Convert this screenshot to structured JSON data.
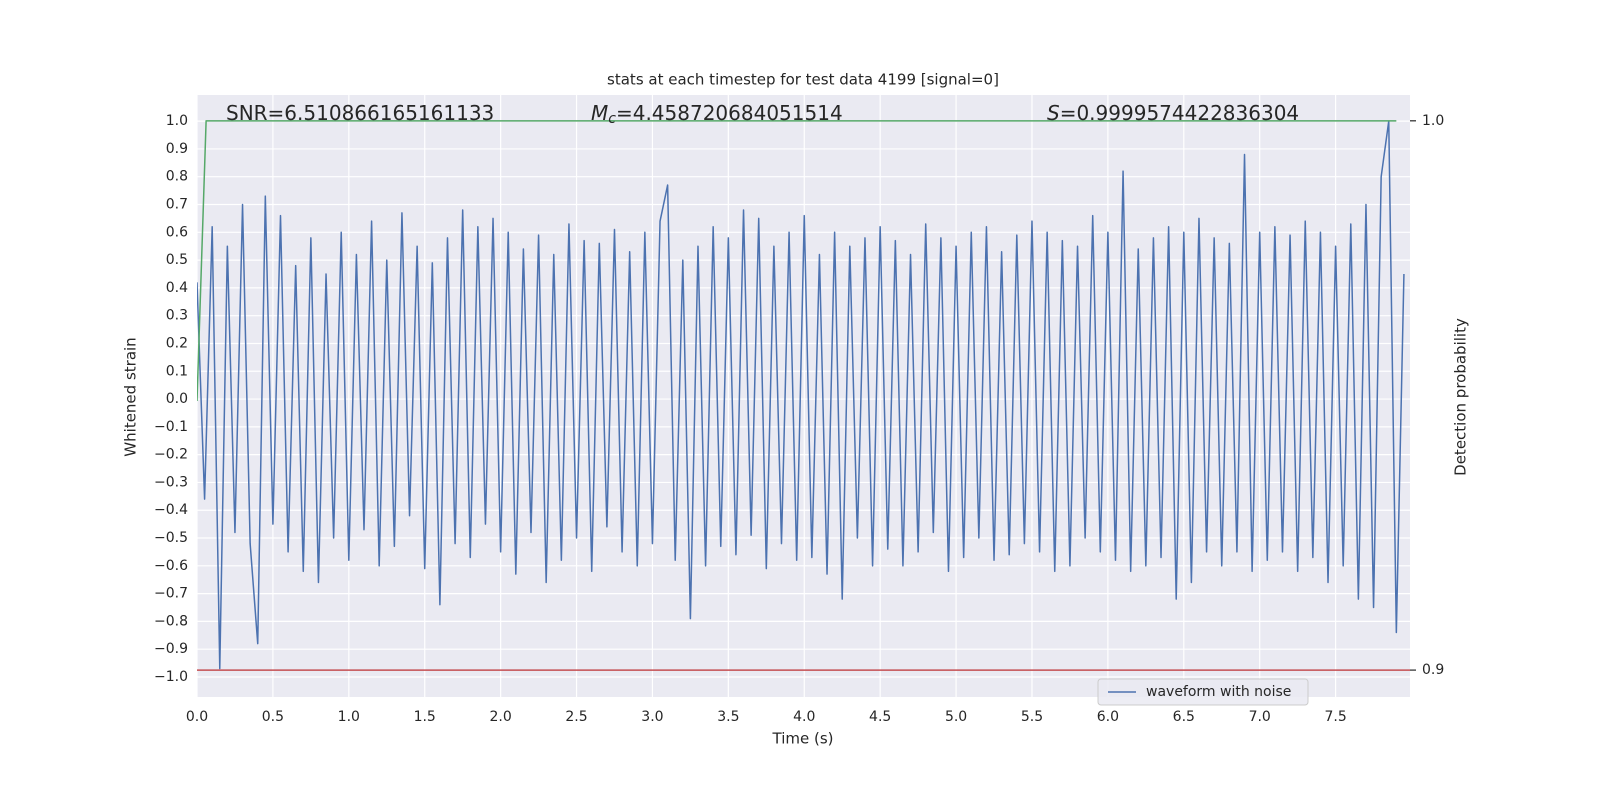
{
  "chart_data": {
    "type": "line",
    "title": "stats at each timestep for test data 4199 [signal=0]",
    "xlabel": "Time (s)",
    "ylabel": "Whitened strain",
    "y2label": "Detection probability",
    "annotations": [
      {
        "text": "SNR=6.510866165161133"
      },
      {
        "symbol": "M",
        "subscript": "c",
        "text": "=4.458720684051514"
      },
      {
        "symbol": "S",
        "text": "=0.9999574422836304"
      }
    ],
    "xlim": [
      0,
      7.99
    ],
    "ylim": [
      -1.072,
      1.094
    ],
    "y2lim": [
      0.8951,
      1.0047
    ],
    "xticks": [
      {
        "value": 0,
        "label": "0.0"
      },
      0.5,
      {
        "value": 1,
        "label": "1.0"
      },
      1.5,
      {
        "value": 2,
        "label": "2.0"
      },
      2.5,
      {
        "value": 3,
        "label": "3.0"
      },
      3.5,
      {
        "value": 4,
        "label": "4.0"
      },
      4.5,
      {
        "value": 5,
        "label": "5.0"
      },
      5.5,
      {
        "value": 6,
        "label": "6.0"
      },
      6.5,
      {
        "value": 7,
        "label": "7.0"
      },
      7.5
    ],
    "yticks": [
      {
        "value": -1,
        "label": "−1.0"
      },
      {
        "value": -0.9,
        "label": "−0.9"
      },
      {
        "value": -0.8,
        "label": "−0.8"
      },
      {
        "value": -0.7,
        "label": "−0.7"
      },
      {
        "value": -0.6,
        "label": "−0.6"
      },
      {
        "value": -0.5,
        "label": "−0.5"
      },
      {
        "value": -0.4,
        "label": "−0.4"
      },
      {
        "value": -0.3,
        "label": "−0.3"
      },
      {
        "value": -0.2,
        "label": "−0.2"
      },
      {
        "value": -0.1,
        "label": "−0.1"
      },
      {
        "value": 0,
        "label": "0.0"
      },
      0.1,
      0.2,
      0.3,
      0.4,
      0.5,
      0.6,
      0.7,
      0.8,
      0.9,
      {
        "value": 1,
        "label": "1.0"
      }
    ],
    "y2ticks": [
      0.9,
      {
        "value": 1,
        "label": "1.0"
      }
    ],
    "grid": true,
    "legend": "lower right",
    "series": [
      {
        "name": "waveform with noise",
        "color": "#4c72b0",
        "x": [
          0,
          0.05,
          0.1,
          0.15,
          0.2,
          0.25,
          0.3,
          0.35,
          0.4,
          0.45,
          0.5,
          0.55,
          0.6,
          0.65,
          0.7,
          0.75,
          0.8,
          0.85,
          0.9,
          0.95,
          1,
          1.05,
          1.1,
          1.15,
          1.2,
          1.25,
          1.3,
          1.35,
          1.4,
          1.45,
          1.5,
          1.55,
          1.6,
          1.65,
          1.7,
          1.75,
          1.8,
          1.85,
          1.9,
          1.95,
          2,
          2.05,
          2.1,
          2.15,
          2.2,
          2.25,
          2.3,
          2.35,
          2.4,
          2.45,
          2.5,
          2.55,
          2.6,
          2.65,
          2.7,
          2.75,
          2.8,
          2.85,
          2.9,
          2.95,
          3,
          3.05,
          3.1,
          3.15,
          3.2,
          3.25,
          3.3,
          3.35,
          3.4,
          3.45,
          3.5,
          3.55,
          3.6,
          3.65,
          3.7,
          3.75,
          3.8,
          3.85,
          3.9,
          3.95,
          4,
          4.05,
          4.1,
          4.15,
          4.2,
          4.25,
          4.3,
          4.35,
          4.4,
          4.45,
          4.5,
          4.55,
          4.6,
          4.65,
          4.7,
          4.75,
          4.8,
          4.85,
          4.9,
          4.95,
          5,
          5.05,
          5.1,
          5.15,
          5.2,
          5.25,
          5.3,
          5.35,
          5.4,
          5.45,
          5.5,
          5.55,
          5.6,
          5.65,
          5.7,
          5.75,
          5.8,
          5.85,
          5.9,
          5.95,
          6,
          6.05,
          6.1,
          6.15,
          6.2,
          6.25,
          6.3,
          6.35,
          6.4,
          6.45,
          6.5,
          6.55,
          6.6,
          6.65,
          6.7,
          6.75,
          6.8,
          6.85,
          6.9,
          6.95,
          7,
          7.05,
          7.1,
          7.15,
          7.2,
          7.25,
          7.3,
          7.35,
          7.4,
          7.45,
          7.5,
          7.55,
          7.6,
          7.65,
          7.7,
          7.75,
          7.8,
          7.85,
          7.9,
          7.95
        ],
        "values": [
          0.42,
          -0.36,
          0.62,
          -0.97,
          0.55,
          -0.48,
          0.7,
          -0.52,
          -0.88,
          0.73,
          -0.45,
          0.66,
          -0.55,
          0.48,
          -0.62,
          0.58,
          -0.66,
          0.45,
          -0.5,
          0.6,
          -0.58,
          0.52,
          -0.47,
          0.64,
          -0.6,
          0.5,
          -0.53,
          0.67,
          -0.42,
          0.55,
          -0.61,
          0.49,
          -0.74,
          0.58,
          -0.52,
          0.68,
          -0.57,
          0.62,
          -0.45,
          0.65,
          -0.55,
          0.6,
          -0.63,
          0.54,
          -0.48,
          0.59,
          -0.66,
          0.52,
          -0.58,
          0.63,
          -0.5,
          0.57,
          -0.62,
          0.56,
          -0.46,
          0.61,
          -0.55,
          0.53,
          -0.6,
          0.6,
          -0.52,
          0.64,
          0.77,
          -0.58,
          0.5,
          -0.79,
          0.55,
          -0.6,
          0.62,
          -0.53,
          0.58,
          -0.56,
          0.68,
          -0.49,
          0.65,
          -0.61,
          0.55,
          -0.52,
          0.6,
          -0.58,
          0.66,
          -0.57,
          0.52,
          -0.63,
          0.6,
          -0.72,
          0.55,
          -0.5,
          0.58,
          -0.6,
          0.62,
          -0.54,
          0.57,
          -0.6,
          0.52,
          -0.55,
          0.63,
          -0.48,
          0.58,
          -0.62,
          0.55,
          -0.57,
          0.6,
          -0.5,
          0.62,
          -0.58,
          0.53,
          -0.56,
          0.59,
          -0.52,
          0.64,
          -0.55,
          0.6,
          -0.62,
          0.57,
          -0.6,
          0.55,
          -0.5,
          0.66,
          -0.55,
          0.6,
          -0.58,
          0.82,
          -0.62,
          0.54,
          -0.6,
          0.58,
          -0.57,
          0.62,
          -0.72,
          0.6,
          -0.66,
          0.65,
          -0.55,
          0.58,
          -0.6,
          0.56,
          -0.55,
          0.88,
          -0.62,
          0.6,
          -0.58,
          0.62,
          -0.55,
          0.59,
          -0.62,
          0.64,
          -0.57,
          0.6,
          -0.66,
          0.55,
          -0.6,
          0.63,
          -0.72,
          0.7,
          -0.75,
          0.8,
          1,
          -0.84,
          0.45
        ]
      },
      {
        "color": "#55a868",
        "axis": "y2",
        "x": [
          0,
          0.06,
          7.9
        ],
        "values": [
          0.949,
          1,
          1
        ]
      },
      {
        "color": "#c44e52",
        "axis": "y2",
        "x": [
          0,
          7.99
        ],
        "values": [
          0.9,
          0.9
        ]
      }
    ]
  }
}
